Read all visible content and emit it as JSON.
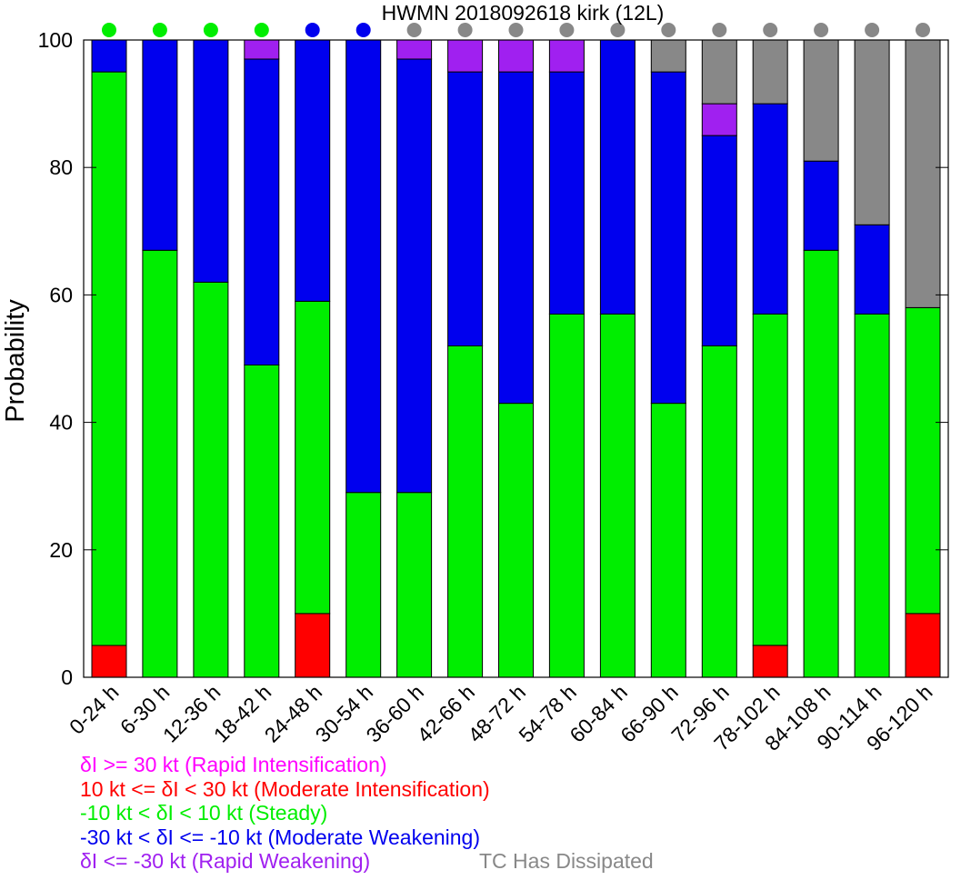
{
  "chart_data": {
    "type": "bar",
    "stacked": true,
    "title": "HWMN 2018092618 kirk (12L)",
    "xlabel": "",
    "ylabel": "Probability",
    "ylim": [
      0,
      100
    ],
    "yticks": [
      0,
      20,
      40,
      60,
      80,
      100
    ],
    "grid": false,
    "categories": [
      "0-24 h",
      "6-30 h",
      "12-36 h",
      "18-42 h",
      "24-48 h",
      "30-54 h",
      "36-60 h",
      "42-66 h",
      "48-72 h",
      "54-78 h",
      "60-84 h",
      "66-90 h",
      "72-96 h",
      "78-102 h",
      "84-108 h",
      "90-114 h",
      "96-120 h"
    ],
    "series": [
      {
        "name": "Moderate Intensification",
        "color": "#ff0000",
        "values": [
          5,
          0,
          0,
          0,
          10,
          0,
          0,
          0,
          0,
          0,
          0,
          0,
          0,
          5,
          0,
          0,
          10
        ]
      },
      {
        "name": "Steady",
        "color": "#00ee00",
        "values": [
          90,
          67,
          62,
          49,
          49,
          29,
          29,
          52,
          43,
          57,
          57,
          43,
          52,
          52,
          67,
          57,
          48
        ]
      },
      {
        "name": "Moderate Weakening",
        "color": "#0000ee",
        "values": [
          5,
          33,
          38,
          48,
          41,
          71,
          68,
          43,
          52,
          38,
          43,
          52,
          33,
          33,
          14,
          14,
          0
        ]
      },
      {
        "name": "Rapid Weakening",
        "color": "#a020f0",
        "values": [
          0,
          0,
          0,
          3,
          0,
          0,
          3,
          5,
          5,
          5,
          0,
          0,
          5,
          0,
          0,
          0,
          0
        ]
      },
      {
        "name": "TC Has Dissipated",
        "color": "#888888",
        "values": [
          0,
          0,
          0,
          0,
          0,
          0,
          0,
          0,
          0,
          0,
          0,
          5,
          10,
          10,
          19,
          29,
          42
        ]
      }
    ],
    "top_dots": {
      "description_colors": "most likely category per window",
      "colors": [
        "#00ee00",
        "#00ee00",
        "#00ee00",
        "#00ee00",
        "#0000ee",
        "#0000ee",
        "#888888",
        "#888888",
        "#888888",
        "#888888",
        "#888888",
        "#888888",
        "#888888",
        "#888888",
        "#888888",
        "#888888",
        "#888888"
      ]
    }
  },
  "legend": {
    "ri": {
      "text": "δI >= 30 kt (Rapid Intensification)",
      "color": "#ff00ff"
    },
    "mi": {
      "text": "10 kt <= δI < 30 kt (Moderate Intensification)",
      "color": "#ff0000"
    },
    "steady": {
      "text": "-10 kt < δI < 10 kt (Steady)",
      "color": "#00ee00"
    },
    "mw": {
      "text": "-30 kt < δI <= -10 kt (Moderate Weakening)",
      "color": "#0000ee"
    },
    "rw": {
      "text": "δI <= -30 kt (Rapid Weakening)",
      "color": "#a020f0"
    },
    "dissipated": {
      "text": "TC Has Dissipated",
      "color": "#888888"
    }
  }
}
